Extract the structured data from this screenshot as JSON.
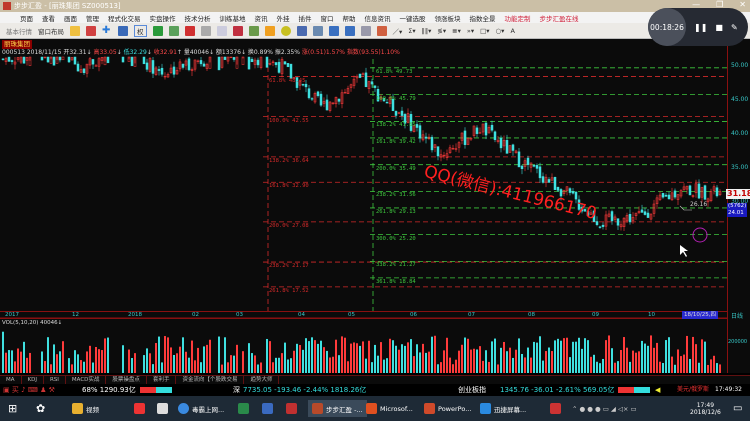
{
  "window": {
    "title": "步步汇盈 - [丽珠集团 SZ000513]",
    "controls": [
      "—",
      "❐",
      "✕"
    ]
  },
  "menu": [
    "页面",
    "查看",
    "画面",
    "管理",
    "程式化交易",
    "实盘操作",
    "技术分析",
    "训练基地",
    "资讯",
    "外挂",
    "插件",
    "窗口",
    "帮助",
    "信息资讯",
    "一键选股",
    "领涨板块",
    "指数全景"
  ],
  "menu_highlight": [
    "功能定制",
    "步步汇盈在线"
  ],
  "toolbar": {
    "basic_quotes": "基本行情",
    "window_layout": "窗口布局",
    "right_label": "权",
    "text_tool": "A"
  },
  "recorder": {
    "time": "00:18:26"
  },
  "chart": {
    "stock_name": "丽珠集团",
    "quote": {
      "code": "000513",
      "date": "2018/11/15",
      "open": "开32.31",
      "high": "高33.05",
      "low": "低32.29",
      "close": "收32.91",
      "volume": "量40046",
      "amount": "额13376",
      "turnover": "换0.89%",
      "amplitude": "振2.35%",
      "change": "涨(0.51)1.57%",
      "index": "指数(93.55)",
      "tail": "1.10%"
    },
    "price_ticks": [
      "50.00",
      "45.00",
      "40.00",
      "35.00",
      "30.00"
    ],
    "last_price": "31.18",
    "cursor_box": [
      "(5762)",
      "24.01"
    ],
    "low_label": "26.16",
    "watermark": "QQ(微信):411966170",
    "fib_red": [
      {
        "label": "61.8% 48.45",
        "p": 48.45
      },
      {
        "label": "100.0% 42.55",
        "p": 42.55
      },
      {
        "label": "138.2% 36.64",
        "p": 36.64
      },
      {
        "label": "161.8% 32.90",
        "p": 32.9
      },
      {
        "label": "200.0% 27.08",
        "p": 27.08
      },
      {
        "label": "238.2% 21.17",
        "p": 21.17
      },
      {
        "label": "261.8% 17.52",
        "p": 17.52
      }
    ],
    "fib_green": [
      {
        "label": "61.8% 49.73",
        "p": 49.73
      },
      {
        "label": "100.0% 45.79",
        "p": 45.79
      },
      {
        "label": "138.2% 41.85",
        "p": 41.85
      },
      {
        "label": "161.8% 39.42",
        "p": 39.42
      },
      {
        "label": "200.0% 35.49",
        "p": 35.49
      },
      {
        "label": "238.2% 31.56",
        "p": 31.56
      },
      {
        "label": "261.8% 29.13",
        "p": 29.13
      },
      {
        "label": "300.0% 25.20",
        "p": 25.2
      },
      {
        "label": "338.2% 21.27",
        "p": 21.27
      },
      {
        "label": "361.8% 18.84",
        "p": 18.84
      }
    ],
    "dates": [
      "2017",
      "12",
      "2018",
      "02",
      "03",
      "04",
      "05",
      "06",
      "07",
      "08",
      "09",
      "10"
    ],
    "date_cursor": "18/10/25,四",
    "period": "日线",
    "volume_title": "VOL(5,10,20) 40046↓",
    "volume_tick": "200000",
    "colors": {
      "up": "#ff3b3b",
      "down": "#3fe0e0",
      "fib_red": "#d42a2a",
      "fib_green": "#3ec83e",
      "axis": "#38c8c8"
    }
  },
  "chart_data": {
    "type": "candlestick",
    "ylim": [
      17,
      55
    ],
    "approx_close_path": [
      51,
      52,
      50,
      53,
      49,
      51,
      52,
      50,
      44,
      48,
      43,
      37,
      41,
      36,
      32,
      27,
      28,
      32,
      31.18
    ]
  },
  "tabs": [
    "MA",
    "KDJ",
    "RSI",
    "MACD实战",
    "股票操盘点",
    "套利手",
    "资金流向【个股跌交易",
    "趋势大师"
  ],
  "status": {
    "sh": "68% 1290.93亿",
    "sz_label": "深",
    "sz": "7735.05 -193.46 -2.44% 1818.26亿",
    "cy_label": "创业板指",
    "cy": "1345.76 -36.01 -2.61% 569.05亿",
    "fx": "美元/俄罗斯",
    "clock": "17:49:32"
  },
  "taskbar": {
    "items": [
      "视频",
      "毒霸上网...",
      "步步汇盈 -...",
      "Microsof...",
      "PowerPo...",
      "迅捷屏幕..."
    ],
    "time": "17:49",
    "date": "2018/12/6"
  }
}
